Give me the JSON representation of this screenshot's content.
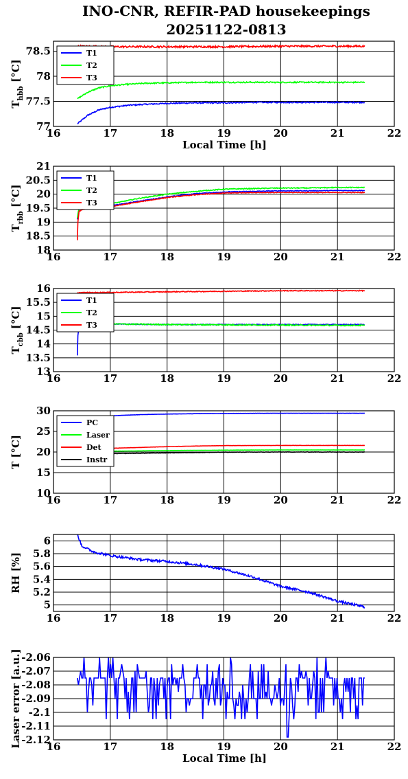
{
  "title": {
    "line1": "INO-CNR, REFIR-PAD housekeepings",
    "line2": "20251122-0813"
  },
  "chart_data": [
    {
      "type": "line",
      "xlabel": "Local Time [h]",
      "ylabel_main": "T",
      "ylabel_sub": "hbb",
      "ylabel_unit": "[°C]",
      "xlim": [
        16,
        22
      ],
      "ylim": [
        77,
        78.7
      ],
      "xticks": [
        16,
        17,
        18,
        19,
        20,
        21,
        22
      ],
      "yticks": [
        77,
        77.5,
        78,
        78.5
      ],
      "ytick_labels": [
        "77",
        "77.5",
        "78",
        "78.5"
      ],
      "legend_position": "top-left",
      "grid": true,
      "series": [
        {
          "name": "T1",
          "color": "#0000ff",
          "x": [
            16.42,
            16.6,
            16.8,
            17.0,
            17.3,
            17.6,
            18.0,
            18.5,
            19.0,
            19.5,
            20.0,
            20.5,
            21.0,
            21.48
          ],
          "y": [
            77.05,
            77.22,
            77.33,
            77.38,
            77.42,
            77.44,
            77.46,
            77.47,
            77.47,
            77.48,
            77.48,
            77.48,
            77.48,
            77.48
          ],
          "noise": 0.012
        },
        {
          "name": "T2",
          "color": "#00ff00",
          "x": [
            16.42,
            16.6,
            16.8,
            17.0,
            17.3,
            17.6,
            18.0,
            18.5,
            19.0,
            19.5,
            20.0,
            20.5,
            21.0,
            21.48
          ],
          "y": [
            77.55,
            77.68,
            77.77,
            77.81,
            77.84,
            77.86,
            77.87,
            77.88,
            77.88,
            77.88,
            77.88,
            77.88,
            77.88,
            77.88
          ],
          "noise": 0.012
        },
        {
          "name": "T3",
          "color": "#ff0000",
          "x": [
            16.42,
            17.0,
            18.0,
            19.0,
            20.0,
            21.0,
            21.48
          ],
          "y": [
            78.6,
            78.59,
            78.59,
            78.59,
            78.6,
            78.6,
            78.6
          ],
          "noise": 0.018
        }
      ]
    },
    {
      "type": "line",
      "xlabel": "",
      "ylabel_main": "T",
      "ylabel_sub": "rbb",
      "ylabel_unit": "[°C]",
      "xlim": [
        16,
        22
      ],
      "ylim": [
        18,
        21
      ],
      "xticks": [
        16,
        17,
        18,
        19,
        20,
        21,
        22
      ],
      "yticks": [
        18,
        18.5,
        19,
        19.5,
        20,
        20.5,
        21
      ],
      "ytick_labels": [
        "18",
        "18.5",
        "19",
        "19.5",
        "20",
        "20.5",
        "21"
      ],
      "legend_position": "top-left",
      "grid": true,
      "series": [
        {
          "name": "T1",
          "color": "#0000ff",
          "x": [
            16.42,
            16.45,
            16.5,
            17.0,
            17.5,
            18.0,
            18.5,
            19.0,
            19.5,
            20.0,
            20.5,
            21.0,
            21.48
          ],
          "y": [
            19.1,
            19.45,
            19.5,
            19.58,
            19.75,
            19.9,
            20.02,
            20.08,
            20.1,
            20.12,
            20.12,
            20.13,
            20.13
          ],
          "noise": 0.012
        },
        {
          "name": "T2",
          "color": "#00ff00",
          "x": [
            16.42,
            16.45,
            16.5,
            17.0,
            17.5,
            18.0,
            18.5,
            19.0,
            19.5,
            20.0,
            20.5,
            21.0,
            21.48
          ],
          "y": [
            19.15,
            19.5,
            19.55,
            19.65,
            19.85,
            20.0,
            20.1,
            20.18,
            20.2,
            20.22,
            20.22,
            20.24,
            20.24
          ],
          "noise": 0.015
        },
        {
          "name": "T3",
          "color": "#ff0000",
          "x": [
            16.42,
            16.43,
            16.45,
            16.5,
            17.0,
            17.5,
            18.0,
            18.5,
            19.0,
            19.5,
            20.0,
            20.5,
            21.0,
            21.48
          ],
          "y": [
            18.35,
            19.0,
            19.38,
            19.45,
            19.55,
            19.72,
            19.88,
            19.98,
            20.04,
            20.06,
            20.06,
            20.06,
            20.06,
            20.06
          ],
          "noise": 0.012
        }
      ]
    },
    {
      "type": "line",
      "xlabel": "",
      "ylabel_main": "T",
      "ylabel_sub": "cbb",
      "ylabel_unit": "[°C]",
      "xlim": [
        16,
        22
      ],
      "ylim": [
        13,
        16
      ],
      "xticks": [
        16,
        17,
        18,
        19,
        20,
        21,
        22
      ],
      "yticks": [
        13,
        13.5,
        14,
        14.5,
        15,
        15.5,
        16
      ],
      "ytick_labels": [
        "13",
        "13.5",
        "14",
        "14.5",
        "15",
        "15.5",
        "16"
      ],
      "legend_position": "top-left",
      "grid": true,
      "series": [
        {
          "name": "T1",
          "color": "#0000ff",
          "x": [
            16.42,
            16.43,
            16.45,
            16.5,
            17.0,
            18.0,
            19.0,
            20.0,
            21.0,
            21.48
          ],
          "y": [
            13.6,
            14.3,
            14.65,
            14.7,
            14.72,
            14.7,
            14.7,
            14.7,
            14.7,
            14.7
          ],
          "noise": 0.015
        },
        {
          "name": "T2",
          "color": "#00ff00",
          "x": [
            16.45,
            16.5,
            17.0,
            18.0,
            19.0,
            20.0,
            21.0,
            21.48
          ],
          "y": [
            14.7,
            14.7,
            14.72,
            14.7,
            14.69,
            14.68,
            14.67,
            14.67
          ],
          "noise": 0.02
        },
        {
          "name": "T3",
          "color": "#ff0000",
          "x": [
            16.42,
            17.0,
            18.0,
            19.0,
            20.0,
            21.0,
            21.48
          ],
          "y": [
            15.85,
            15.86,
            15.88,
            15.9,
            15.92,
            15.92,
            15.92
          ],
          "noise": 0.015
        }
      ]
    },
    {
      "type": "line",
      "xlabel": "",
      "ylabel_main": "T [°C]",
      "ylabel_sub": "",
      "ylabel_unit": "",
      "xlim": [
        16,
        22
      ],
      "ylim": [
        10,
        30
      ],
      "xticks": [
        16,
        17,
        18,
        19,
        20,
        21,
        22
      ],
      "yticks": [
        10,
        15,
        20,
        25,
        30
      ],
      "ytick_labels": [
        "10",
        "15",
        "20",
        "25",
        "30"
      ],
      "legend_position": "top-left",
      "grid": true,
      "series": [
        {
          "name": "PC",
          "color": "#0000ff",
          "x": [
            16.42,
            16.8,
            17.2,
            17.6,
            18.0,
            18.5,
            19.0,
            20.0,
            21.0,
            21.48
          ],
          "y": [
            28.1,
            28.6,
            28.9,
            29.1,
            29.2,
            29.3,
            29.35,
            29.4,
            29.4,
            29.4
          ],
          "noise": 0.02
        },
        {
          "name": "Laser",
          "color": "#00ff00",
          "x": [
            16.42,
            17.0,
            18.0,
            19.0,
            20.0,
            21.0,
            21.48
          ],
          "y": [
            20.0,
            20.2,
            20.35,
            20.45,
            20.5,
            20.5,
            20.5
          ],
          "noise": 0.02
        },
        {
          "name": "Det",
          "color": "#ff0000",
          "x": [
            16.42,
            17.0,
            17.5,
            18.0,
            18.5,
            19.0,
            20.0,
            21.0,
            21.48
          ],
          "y": [
            20.7,
            20.9,
            21.1,
            21.3,
            21.45,
            21.55,
            21.6,
            21.6,
            21.6
          ],
          "noise": 0.02
        },
        {
          "name": "Instr",
          "color": "#000000",
          "x": [
            16.42,
            17.0,
            18.0,
            19.0,
            20.0,
            21.0,
            21.48
          ],
          "y": [
            19.3,
            19.6,
            19.8,
            19.95,
            20.0,
            20.0,
            20.0
          ],
          "noise": 0.05
        }
      ]
    },
    {
      "type": "line",
      "xlabel": "",
      "ylabel_main": "RH [%]",
      "ylabel_sub": "",
      "ylabel_unit": "",
      "xlim": [
        16,
        22
      ],
      "ylim": [
        4.9,
        6.1
      ],
      "xticks": [
        16,
        17,
        18,
        19,
        20,
        21,
        22
      ],
      "yticks": [
        5,
        5.2,
        5.4,
        5.6,
        5.8,
        6
      ],
      "ytick_labels": [
        "5",
        "5.2",
        "5.4",
        "5.6",
        "5.8",
        "6"
      ],
      "legend_position": "none",
      "grid": true,
      "series": [
        {
          "name": "",
          "color": "#0000ff",
          "x": [
            16.42,
            16.5,
            16.7,
            17.0,
            17.5,
            18.0,
            18.5,
            19.0,
            19.5,
            20.0,
            20.5,
            21.0,
            21.48
          ],
          "y": [
            6.1,
            5.92,
            5.83,
            5.77,
            5.71,
            5.68,
            5.63,
            5.56,
            5.44,
            5.29,
            5.2,
            5.06,
            4.97
          ],
          "noise": 0.018
        }
      ]
    },
    {
      "type": "line",
      "xlabel": "Local Time [h]",
      "ylabel_main": "Laser error [a.u.]",
      "ylabel_sub": "",
      "ylabel_unit": "",
      "xlim": [
        16,
        22
      ],
      "ylim": [
        -2.12,
        -2.06
      ],
      "xticks": [
        16,
        17,
        18,
        19,
        20,
        21,
        22
      ],
      "yticks": [
        -2.12,
        -2.11,
        -2.1,
        -2.09,
        -2.08,
        -2.07,
        -2.06
      ],
      "ytick_labels": [
        "-2.12",
        "-2.11",
        "-2.1",
        "-2.09",
        "-2.08",
        "-2.07",
        "-2.06"
      ],
      "legend_position": "none",
      "grid": true,
      "series": [
        {
          "name": "",
          "color": "#0000ff",
          "x": [
            16.42,
            21.48
          ],
          "y": [
            -2.075,
            -2.075
          ],
          "jitter_levels": [
            -2.06,
            -2.065,
            -2.07,
            -2.075,
            -2.08,
            -2.085,
            -2.09,
            -2.095,
            -2.1,
            -2.105
          ],
          "baseline_levels": [
            -2.075,
            -2.09
          ],
          "spike": {
            "x": 20.12,
            "y": -2.118
          }
        }
      ]
    }
  ]
}
